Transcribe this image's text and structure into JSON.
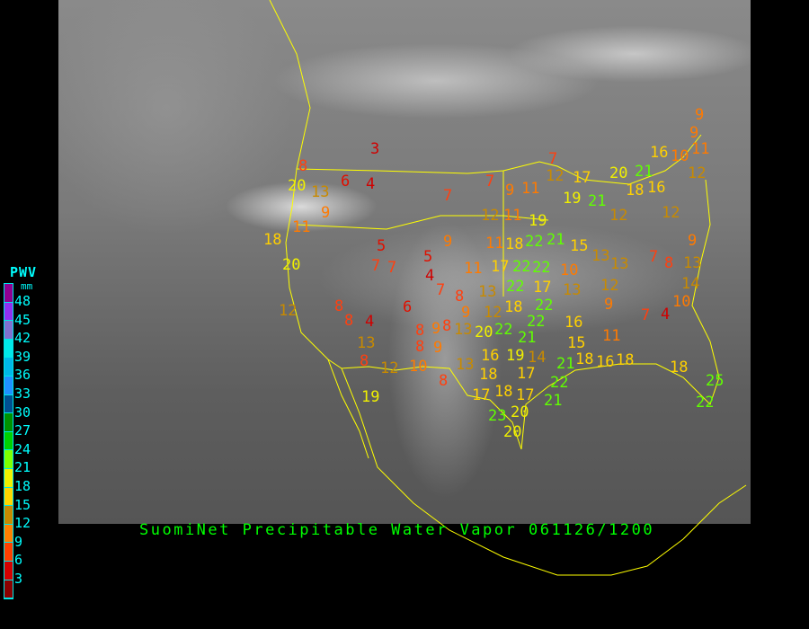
{
  "title": "SuomiNet Precipitable Water Vapor 061126/1200",
  "legend": {
    "title": "PWV",
    "unit": "mm",
    "labels": [
      "48",
      "45",
      "42",
      "39",
      "36",
      "33",
      "30",
      "27",
      "24",
      "21",
      "18",
      "15",
      "12",
      "9",
      "6",
      "3"
    ],
    "swatch_colors": [
      "#900090",
      "#9030f0",
      "#8070d0",
      "#00e8e8",
      "#00b8e8",
      "#2090ff",
      "#005090",
      "#009000",
      "#00d000",
      "#80ff00",
      "#f0f000",
      "#ffd700",
      "#c88a00",
      "#ff8000",
      "#ff4000",
      "#d40000",
      "#8b0000"
    ]
  },
  "colors": {
    "border_lines": "#ffff00",
    "title": "#00ff00",
    "legend_text": "#00ffff"
  },
  "stations": [
    "3",
    "8",
    "20",
    "13",
    "6",
    "4",
    "9",
    "7",
    "7",
    "9",
    "11",
    "7",
    "12",
    "17",
    "20",
    "21",
    "16",
    "10",
    "11",
    "9",
    "9",
    "12",
    "16",
    "18",
    "19",
    "21",
    "12",
    "11",
    "11",
    "18",
    "9",
    "11",
    "18",
    "22",
    "19",
    "21",
    "12",
    "9",
    "5",
    "7",
    "7",
    "5",
    "4",
    "20",
    "11",
    "17",
    "22",
    "22",
    "17",
    "10",
    "15",
    "13",
    "13",
    "12",
    "7",
    "8",
    "13",
    "14",
    "12",
    "8",
    "8",
    "4",
    "6",
    "7",
    "8",
    "13",
    "12",
    "18",
    "9",
    "22",
    "22",
    "22",
    "22",
    "21",
    "20",
    "13",
    "8",
    "9",
    "8",
    "13",
    "9",
    "12",
    "9",
    "7",
    "4",
    "10",
    "13",
    "16",
    "15",
    "11",
    "19",
    "16",
    "14",
    "21",
    "18",
    "8",
    "12",
    "10",
    "8",
    "13",
    "18",
    "8",
    "17",
    "22",
    "16",
    "18",
    "18",
    "25",
    "22",
    "19",
    "17",
    "18",
    "17",
    "21",
    "23",
    "20",
    "20"
  ]
}
